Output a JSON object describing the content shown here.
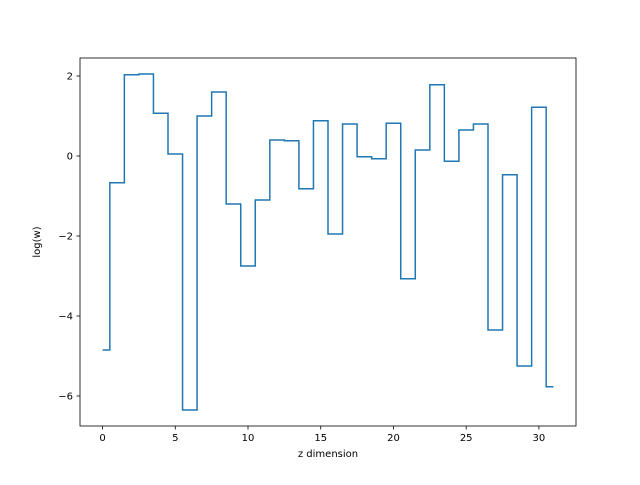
{
  "chart_data": {
    "type": "line",
    "drawstyle": "steps-mid",
    "title": "",
    "xlabel": "z dimension",
    "ylabel": "log(w)",
    "xlim": [
      -1.55,
      32.55
    ],
    "ylim": [
      -6.75,
      2.45
    ],
    "xticks": [
      0,
      5,
      10,
      15,
      20,
      25,
      30
    ],
    "yticks": [
      -6,
      -4,
      -2,
      0,
      2
    ],
    "ytick_labels": [
      "−6",
      "−4",
      "−2",
      "0",
      "2"
    ],
    "grid": false,
    "legend": "none",
    "series": [
      {
        "color": "#1f77b4",
        "x": [
          0,
          1,
          2,
          3,
          4,
          5,
          6,
          7,
          8,
          9,
          10,
          11,
          12,
          13,
          14,
          15,
          16,
          17,
          18,
          19,
          20,
          21,
          22,
          23,
          24,
          25,
          26,
          27,
          28,
          29,
          30,
          31
        ],
        "y": [
          -4.85,
          -0.67,
          2.03,
          2.05,
          1.07,
          0.05,
          -6.35,
          1.0,
          1.6,
          -1.2,
          -2.75,
          -1.1,
          0.4,
          0.38,
          -0.82,
          0.88,
          -1.95,
          0.8,
          -0.02,
          -0.07,
          0.82,
          -3.07,
          0.15,
          1.78,
          -0.13,
          0.65,
          0.8,
          -4.35,
          -0.47,
          -5.25,
          1.22,
          -5.77
        ]
      }
    ]
  }
}
